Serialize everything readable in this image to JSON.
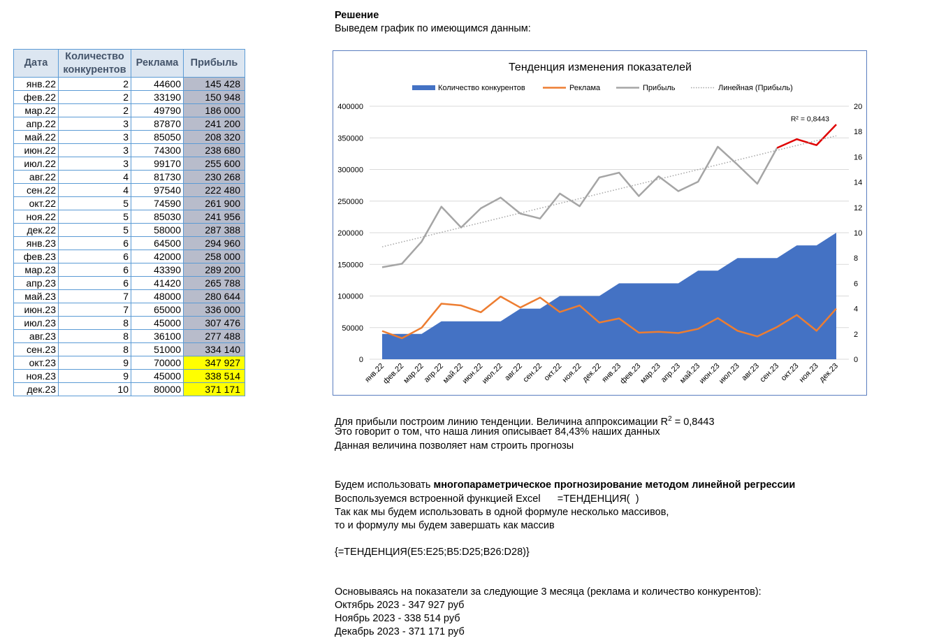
{
  "table": {
    "headers": [
      "Дата",
      "Количество конкурентов",
      "Реклама",
      "Прибыль"
    ],
    "rows": [
      {
        "date": "янв.22",
        "competitors": "2",
        "advertising": "44600",
        "profit": "145 428",
        "forecast": false
      },
      {
        "date": "фев.22",
        "competitors": "2",
        "advertising": "33190",
        "profit": "150 948",
        "forecast": false
      },
      {
        "date": "мар.22",
        "competitors": "2",
        "advertising": "49790",
        "profit": "186 000",
        "forecast": false
      },
      {
        "date": "апр.22",
        "competitors": "3",
        "advertising": "87870",
        "profit": "241 200",
        "forecast": false
      },
      {
        "date": "май.22",
        "competitors": "3",
        "advertising": "85050",
        "profit": "208 320",
        "forecast": false
      },
      {
        "date": "июн.22",
        "competitors": "3",
        "advertising": "74300",
        "profit": "238 680",
        "forecast": false
      },
      {
        "date": "июл.22",
        "competitors": "3",
        "advertising": "99170",
        "profit": "255 600",
        "forecast": false
      },
      {
        "date": "авг.22",
        "competitors": "4",
        "advertising": "81730",
        "profit": "230 268",
        "forecast": false
      },
      {
        "date": "сен.22",
        "competitors": "4",
        "advertising": "97540",
        "profit": "222 480",
        "forecast": false
      },
      {
        "date": "окт.22",
        "competitors": "5",
        "advertising": "74590",
        "profit": "261 900",
        "forecast": false
      },
      {
        "date": "ноя.22",
        "competitors": "5",
        "advertising": "85030",
        "profit": "241 956",
        "forecast": false
      },
      {
        "date": "дек.22",
        "competitors": "5",
        "advertising": "58000",
        "profit": "287 388",
        "forecast": false
      },
      {
        "date": "янв.23",
        "competitors": "6",
        "advertising": "64500",
        "profit": "294 960",
        "forecast": false
      },
      {
        "date": "фев.23",
        "competitors": "6",
        "advertising": "42000",
        "profit": "258 000",
        "forecast": false
      },
      {
        "date": "мар.23",
        "competitors": "6",
        "advertising": "43390",
        "profit": "289 200",
        "forecast": false
      },
      {
        "date": "апр.23",
        "competitors": "6",
        "advertising": "41420",
        "profit": "265 788",
        "forecast": false
      },
      {
        "date": "май.23",
        "competitors": "7",
        "advertising": "48000",
        "profit": "280 644",
        "forecast": false
      },
      {
        "date": "июн.23",
        "competitors": "7",
        "advertising": "65000",
        "profit": "336 000",
        "forecast": false
      },
      {
        "date": "июл.23",
        "competitors": "8",
        "advertising": "45000",
        "profit": "307 476",
        "forecast": false
      },
      {
        "date": "авг.23",
        "competitors": "8",
        "advertising": "36100",
        "profit": "277 488",
        "forecast": false
      },
      {
        "date": "сен.23",
        "competitors": "8",
        "advertising": "51000",
        "profit": "334 140",
        "forecast": false
      },
      {
        "date": "окт.23",
        "competitors": "9",
        "advertising": "70000",
        "profit": "347 927",
        "forecast": true
      },
      {
        "date": "ноя.23",
        "competitors": "9",
        "advertising": "45000",
        "profit": "338 514",
        "forecast": true
      },
      {
        "date": "дек.23",
        "competitors": "10",
        "advertising": "80000",
        "profit": "371 171",
        "forecast": true
      }
    ]
  },
  "solution": {
    "heading": "Решение",
    "intro": "Выведем график по имеющимся данным:"
  },
  "analysis": {
    "line1_prefix": "Для прибыли построим линию тенденции. Величина аппроксимации R",
    "line1_sup": "2",
    "line1_suffix": " = 0,8443",
    "line2": "Это говорит о том, что наша линия описывает 84,43% наших данных",
    "line3": "Данная величина позволяет нам строить прогнозы",
    "line4_prefix": "Будем использовать ",
    "line4_bold": "многопараметрическое прогнозирование методом линейной регрессии",
    "line5": "Воспользуемся встроенной функцией Excel      =ТЕНДЕНЦИЯ(  )",
    "line6": "Так как мы будем использовать в одной формуле несколько массивов,",
    "line7": "то и формулу мы будем завершать как массив",
    "formula": "{=ТЕНДЕНЦИЯ(E5:E25;B5:D25;B26:D28)}",
    "line8": "Основываясь на показатели за следующие 3 месяца (реклама и количество конкурентов):",
    "forecast1": "Октябрь 2023 - 347 927 руб",
    "forecast2": "Ноябрь 2023 - 338 514 руб",
    "forecast3": "Декабрь 2023 - 371 171 руб"
  },
  "colors": {
    "competitors": "#4472c4",
    "advertising": "#ed7d31",
    "profit": "#a5a5a5",
    "forecast": "#e00000",
    "trend": "#a5a5a5"
  },
  "chart_data": {
    "type": "area",
    "title": "Тенденция изменения показателей",
    "categories": [
      "янв.22",
      "фев.22",
      "мар.22",
      "апр.22",
      "май.22",
      "июн.22",
      "июл.22",
      "авг.22",
      "сен.22",
      "окт.22",
      "ноя.22",
      "дек.22",
      "янв.23",
      "фев.23",
      "мар.23",
      "апр.23",
      "май.23",
      "июн.23",
      "июл.23",
      "авг.23",
      "сен.23",
      "окт.23",
      "ноя.23",
      "дек.23"
    ],
    "y_left": {
      "min": 0,
      "max": 400000,
      "step": 50000,
      "ticks": [
        "400000",
        "350000",
        "300000",
        "250000",
        "200000",
        "150000",
        "100000",
        "50000",
        "0"
      ]
    },
    "y_right": {
      "min": 0,
      "max": 20,
      "step": 2,
      "ticks": [
        "20",
        "18",
        "16",
        "14",
        "12",
        "10",
        "8",
        "6",
        "4",
        "2",
        "0"
      ]
    },
    "legend_position": "top",
    "grid": true,
    "series": [
      {
        "name": "Количество конкурентов",
        "type": "area",
        "axis": "right",
        "values": [
          2,
          2,
          2,
          3,
          3,
          3,
          3,
          4,
          4,
          5,
          5,
          5,
          6,
          6,
          6,
          6,
          7,
          7,
          8,
          8,
          8,
          9,
          9,
          10
        ]
      },
      {
        "name": "Реклама",
        "type": "line",
        "axis": "left",
        "values": [
          44600,
          33190,
          49790,
          87870,
          85050,
          74300,
          99170,
          81730,
          97540,
          74590,
          85030,
          58000,
          64500,
          42000,
          43390,
          41420,
          48000,
          65000,
          45000,
          36100,
          51000,
          70000,
          45000,
          80000
        ]
      },
      {
        "name": "Прибыль",
        "type": "line",
        "axis": "left",
        "values": [
          145428,
          150948,
          186000,
          241200,
          208320,
          238680,
          255600,
          230268,
          222480,
          261900,
          241956,
          287388,
          294960,
          258000,
          289200,
          265788,
          280644,
          336000,
          307476,
          277488,
          334140,
          347927,
          338514,
          371171
        ]
      },
      {
        "name": "Линейная (Прибыль)",
        "type": "trend",
        "axis": "left"
      }
    ],
    "forecast_from_index": 20,
    "annotation": "R² = 0,8443"
  }
}
